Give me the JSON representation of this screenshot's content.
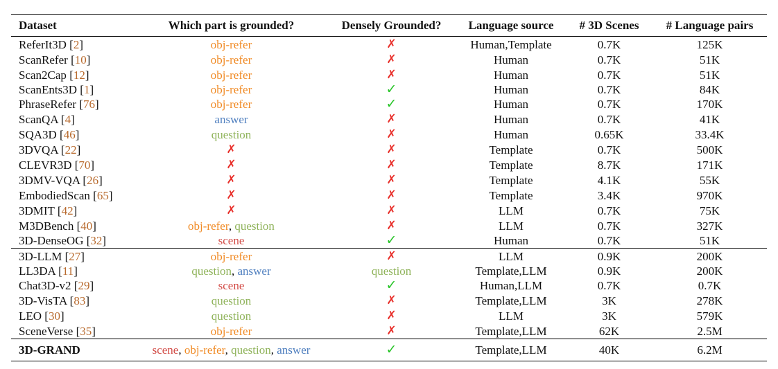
{
  "columns": [
    "Dataset",
    "Which part is grounded?",
    "Densely Grounded?",
    "Language source",
    "# 3D Scenes",
    "# Language pairs"
  ],
  "colors": {
    "obj-refer": "#f08a24",
    "answer": "#4f7fbf",
    "question": "#8fb35a",
    "scene": "#d24b46",
    "cite": "#b86a2d",
    "cross": "#e8302b",
    "check": "#27c427"
  },
  "groups": [
    [
      {
        "name": "ReferIt3D",
        "ref": "2",
        "grounded": [
          "obj-refer"
        ],
        "dense": "no",
        "source": "Human,Template",
        "scenes": "0.7K",
        "pairs": "125K"
      },
      {
        "name": "ScanRefer",
        "ref": "10",
        "grounded": [
          "obj-refer"
        ],
        "dense": "no",
        "source": "Human",
        "scenes": "0.7K",
        "pairs": "51K"
      },
      {
        "name": "Scan2Cap",
        "ref": "12",
        "grounded": [
          "obj-refer"
        ],
        "dense": "no",
        "source": "Human",
        "scenes": "0.7K",
        "pairs": "51K"
      },
      {
        "name": "ScanEnts3D",
        "ref": "1",
        "grounded": [
          "obj-refer"
        ],
        "dense": "yes",
        "source": "Human",
        "scenes": "0.7K",
        "pairs": "84K"
      },
      {
        "name": "PhraseRefer",
        "ref": "76",
        "grounded": [
          "obj-refer"
        ],
        "dense": "yes",
        "source": "Human",
        "scenes": "0.7K",
        "pairs": "170K"
      },
      {
        "name": "ScanQA",
        "ref": "4",
        "grounded": [
          "answer"
        ],
        "dense": "no",
        "source": "Human",
        "scenes": "0.7K",
        "pairs": "41K"
      },
      {
        "name": "SQA3D",
        "ref": "46",
        "grounded": [
          "question"
        ],
        "dense": "no",
        "source": "Human",
        "scenes": "0.65K",
        "pairs": "33.4K"
      },
      {
        "name": "3DVQA",
        "ref": "22",
        "grounded": [],
        "dense": "no",
        "source": "Template",
        "scenes": "0.7K",
        "pairs": "500K"
      },
      {
        "name": "CLEVR3D",
        "ref": "70",
        "grounded": [],
        "dense": "no",
        "source": "Template",
        "scenes": "8.7K",
        "pairs": "171K"
      },
      {
        "name": "3DMV-VQA",
        "ref": "26",
        "grounded": [],
        "dense": "no",
        "source": "Template",
        "scenes": "4.1K",
        "pairs": "55K"
      },
      {
        "name": "EmbodiedScan",
        "ref": "65",
        "grounded": [],
        "dense": "no",
        "source": "Template",
        "scenes": "3.4K",
        "pairs": "970K"
      },
      {
        "name": "3DMIT",
        "ref": "42",
        "grounded": [],
        "dense": "no",
        "source": "LLM",
        "scenes": "0.7K",
        "pairs": "75K"
      },
      {
        "name": "M3DBench",
        "ref": "40",
        "grounded": [
          "obj-refer",
          "question"
        ],
        "dense": "no",
        "source": "LLM",
        "scenes": "0.7K",
        "pairs": "327K"
      },
      {
        "name": "3D-DenseOG",
        "ref": "32",
        "grounded": [
          "scene"
        ],
        "dense": "yes",
        "source": "Human",
        "scenes": "0.7K",
        "pairs": "51K"
      }
    ],
    [
      {
        "name": "3D-LLM",
        "ref": "27",
        "grounded": [
          "obj-refer"
        ],
        "dense": "no",
        "source": "LLM",
        "scenes": "0.9K",
        "pairs": "200K"
      },
      {
        "name": "LL3DA",
        "ref": "11",
        "grounded": [
          "question",
          "answer"
        ],
        "dense": "question",
        "source": "Template,LLM",
        "scenes": "0.9K",
        "pairs": "200K"
      },
      {
        "name": "Chat3D-v2",
        "ref": "29",
        "grounded": [
          "scene"
        ],
        "dense": "yes",
        "source": "Human,LLM",
        "scenes": "0.7K",
        "pairs": "0.7K"
      },
      {
        "name": "3D-VisTA",
        "ref": "83",
        "grounded": [
          "question"
        ],
        "dense": "no",
        "source": "Template,LLM",
        "scenes": "3K",
        "pairs": "278K"
      },
      {
        "name": "LEO",
        "ref": "30",
        "grounded": [
          "question"
        ],
        "dense": "no",
        "source": "LLM",
        "scenes": "3K",
        "pairs": "579K"
      },
      {
        "name": "SceneVerse",
        "ref": "35",
        "grounded": [
          "obj-refer"
        ],
        "dense": "no",
        "source": "Template,LLM",
        "scenes": "62K",
        "pairs": "2.5M"
      }
    ],
    [
      {
        "name": "3D-GRAND",
        "ref": "",
        "grounded": [
          "scene",
          "obj-refer",
          "question",
          "answer"
        ],
        "dense": "yes",
        "source": "Template,LLM",
        "scenes": "40K",
        "pairs": "6.2M"
      }
    ]
  ]
}
